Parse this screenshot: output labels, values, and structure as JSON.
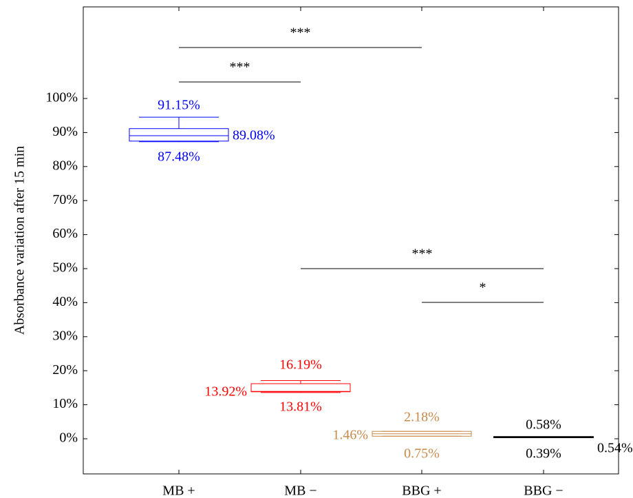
{
  "chart_data": {
    "type": "boxplot",
    "title": "",
    "xlabel": "",
    "ylabel": "Absorbance variation after 15 min",
    "ylim": [
      -10,
      115
    ],
    "yticks": [
      0,
      10,
      20,
      30,
      40,
      50,
      60,
      70,
      80,
      90,
      100
    ],
    "ytick_labels": [
      "0%",
      "10%",
      "20%",
      "30%",
      "40%",
      "50%",
      "60%",
      "70%",
      "80%",
      "90%",
      "100%"
    ],
    "grid": false,
    "categories": [
      "MB +",
      "MB −",
      "BBG +",
      "BBG −"
    ],
    "series": [
      {
        "color": "#0000ff",
        "whisker_low": 87.3,
        "q1": 87.48,
        "median": 89.08,
        "q3": 91.15,
        "whisker_high": 94.5,
        "labels": {
          "top": "91.15%",
          "bottom": "87.48%",
          "side": "89.08%"
        },
        "side": "right"
      },
      {
        "color": "#ff0000",
        "whisker_low": 13.6,
        "q1": 13.81,
        "median": 13.92,
        "q3": 16.19,
        "whisker_high": 17.1,
        "labels": {
          "top": "16.19%",
          "bottom": "13.81%",
          "side": "13.92%"
        },
        "side": "left"
      },
      {
        "color": "#c58a4a",
        "whisker_low": 0.75,
        "q1": 0.75,
        "median": 1.46,
        "q3": 2.18,
        "whisker_high": 2.18,
        "labels": {
          "top": "2.18%",
          "bottom": "0.75%",
          "side": "1.46%"
        },
        "side": "left"
      },
      {
        "color": "#000000",
        "whisker_low": 0.39,
        "q1": 0.39,
        "median": 0.54,
        "q3": 0.58,
        "whisker_high": 0.58,
        "labels": {
          "top": "0.58%",
          "bottom": "0.39%",
          "side": "0.54%"
        },
        "side": "right"
      }
    ],
    "significance": [
      {
        "from": 0,
        "to": 2,
        "y": 115,
        "label": "***"
      },
      {
        "from": 0,
        "to": 1,
        "y": 105,
        "label": "***"
      },
      {
        "from": 1,
        "to": 3,
        "y": 50,
        "label": "***"
      },
      {
        "from": 2,
        "to": 3,
        "y": 40,
        "label": "*"
      }
    ]
  }
}
